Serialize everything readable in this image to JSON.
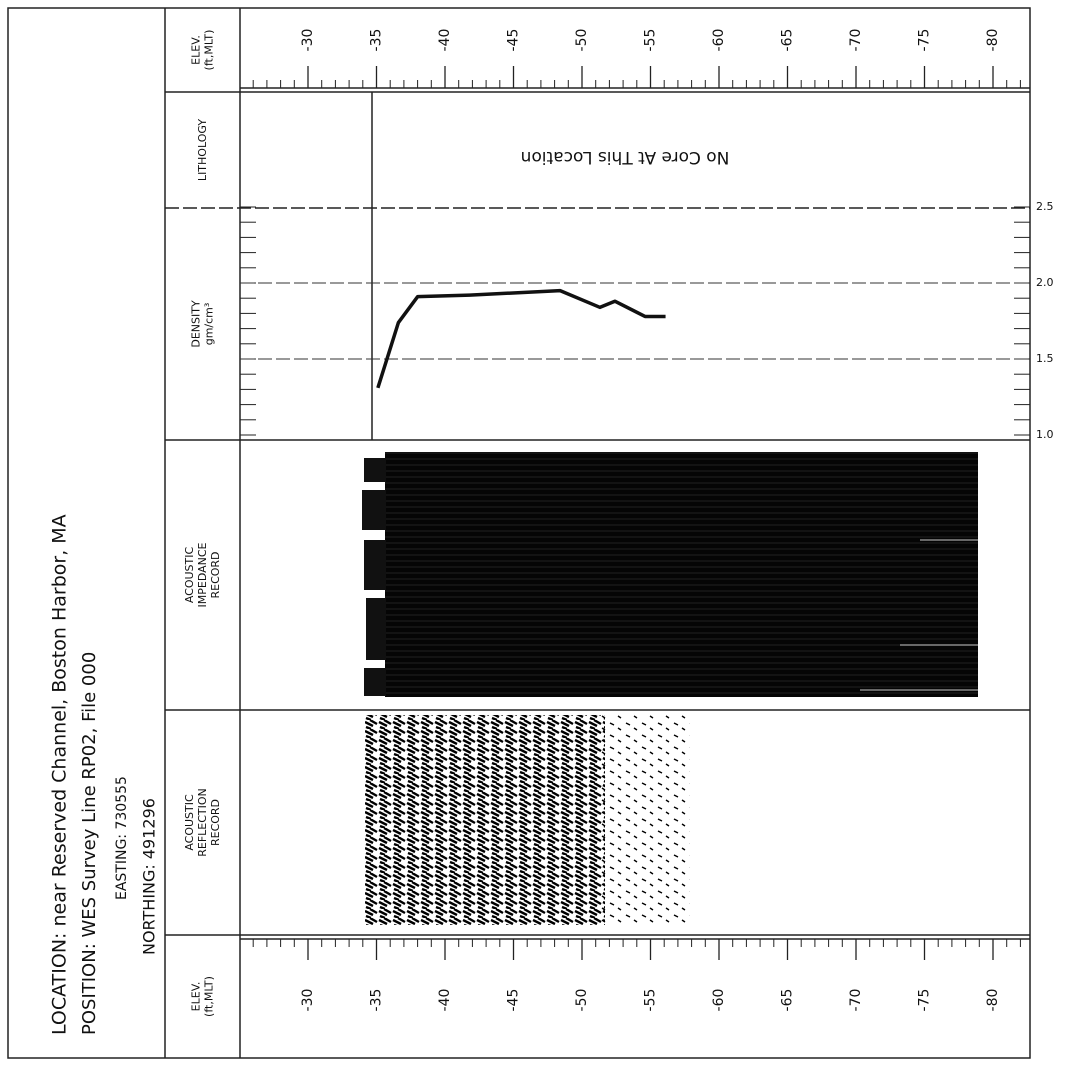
{
  "header": {
    "location": "LOCATION: near Reserved Channel, Boston Harbor, MA",
    "position": "POSITION: WES Survey Line RP02, File 000",
    "easting": "EASTING: 730555",
    "northing": "NORTHING: 491296"
  },
  "panels": {
    "elev_top": [
      "ELEV.",
      "(ft,MLT)"
    ],
    "lithology": [
      "LITHOLOGY"
    ],
    "density": [
      "DENSITY",
      "gm/cm³"
    ],
    "impedance": [
      "ACOUSTIC",
      "IMPEDANCE",
      "RECORD"
    ],
    "reflection": [
      "ACOUSTIC",
      "REFLECTION",
      "RECORD"
    ],
    "elev_bottom": [
      "ELEV.",
      "(ft,MLT)"
    ]
  },
  "annotation": "No Core At This Location",
  "chart_data": {
    "type": "line",
    "color": "#111111",
    "x": [
      -35.1,
      -36.6,
      -38.0,
      -41.8,
      -48.4,
      -51.3,
      -52.4,
      -54.6,
      -56.1
    ],
    "values": [
      1.31,
      1.74,
      1.91,
      1.92,
      1.95,
      1.84,
      1.88,
      1.78,
      1.78
    ],
    "xlim": [
      -30,
      -80
    ],
    "xticks": [
      -30,
      -35,
      -40,
      -45,
      -50,
      -55,
      -60,
      -65,
      -70,
      -75,
      -80
    ],
    "ylim": [
      1.0,
      2.5
    ],
    "yticks": [
      {
        "value": 1.0,
        "label": "1.0"
      },
      {
        "value": 1.5,
        "label": "1.5"
      },
      {
        "value": 2.0,
        "label": "2.0"
      },
      {
        "value": 2.5,
        "label": "2.5"
      }
    ],
    "grid": true
  }
}
